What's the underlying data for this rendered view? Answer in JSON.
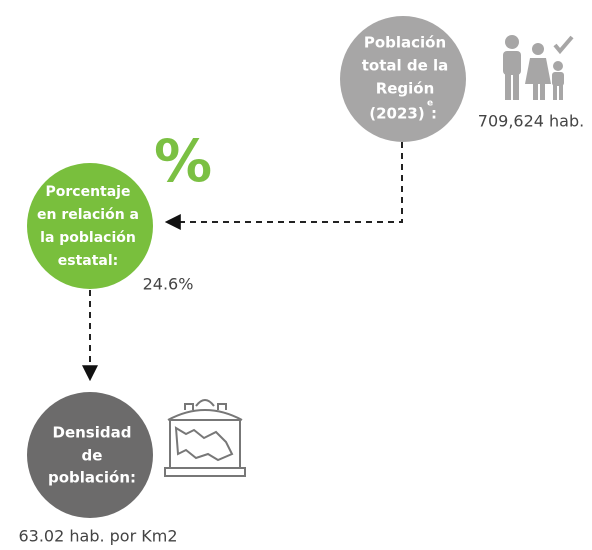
{
  "nodes": [
    {
      "label_lines": [
        "Población",
        "total de la",
        "Región",
        "(2023)"
      ],
      "superscript": "e",
      "suffix": ":",
      "value": "709,624 hab."
    },
    {
      "label_lines": [
        "Porcentaje",
        "en relación a",
        "la población",
        "estatal:"
      ],
      "value": "24.6%",
      "symbol": "%"
    },
    {
      "label_lines": [
        "Densidad",
        "de",
        "población:"
      ],
      "value": "63.02 hab. por Km2"
    }
  ]
}
